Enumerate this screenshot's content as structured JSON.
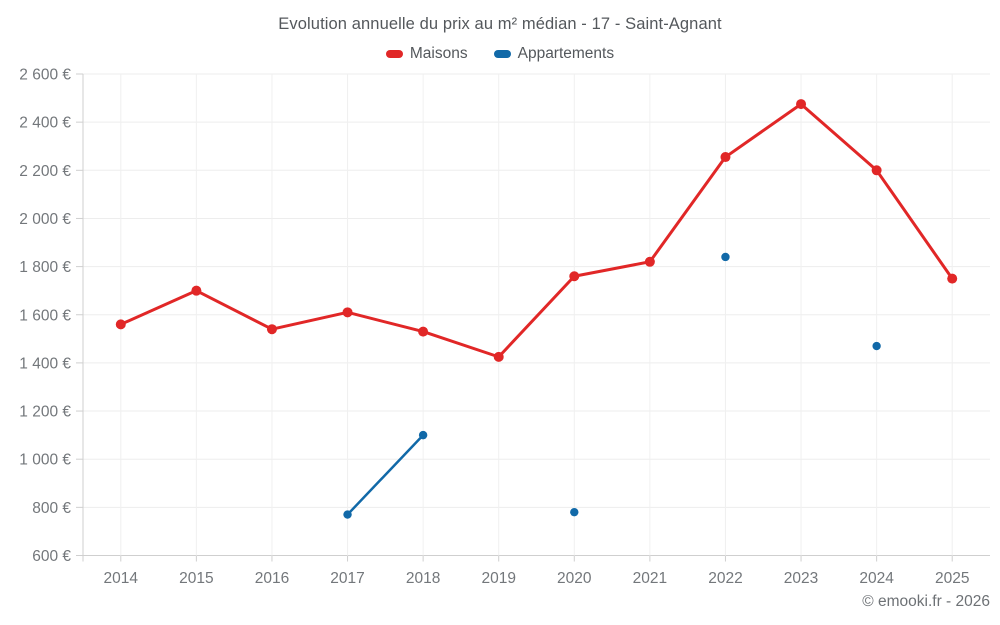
{
  "header": {
    "title": "Evolution annuelle du prix au m² médian - 17 - Saint-Agnant"
  },
  "legend": {
    "items": [
      {
        "label": "Maisons",
        "color": "#e12727"
      },
      {
        "label": "Appartements",
        "color": "#1169a8"
      }
    ]
  },
  "footer": {
    "text": "© emooki.fr - 2026"
  },
  "chart_data": {
    "type": "line",
    "title": "Evolution annuelle du prix au m² médian - 17 - Saint-Agnant",
    "xlabel": "",
    "ylabel": "",
    "y_unit": "€",
    "ylim": [
      600,
      2600
    ],
    "ytick_step": 200,
    "grid": true,
    "legend_position": "top",
    "categories": [
      "2014",
      "2015",
      "2016",
      "2017",
      "2018",
      "2019",
      "2020",
      "2021",
      "2022",
      "2023",
      "2024",
      "2025"
    ],
    "series": [
      {
        "name": "Maisons",
        "color": "#e12727",
        "line_width": 3,
        "point_radius": 5,
        "values": [
          1560,
          1700,
          1540,
          1610,
          1530,
          1425,
          1760,
          1820,
          2255,
          2475,
          2200,
          1750
        ]
      },
      {
        "name": "Appartements",
        "color": "#1169a8",
        "line_width": 2.5,
        "point_radius": 4.2,
        "values": [
          null,
          null,
          null,
          770,
          1100,
          null,
          780,
          null,
          1840,
          null,
          1470,
          null
        ]
      }
    ]
  }
}
